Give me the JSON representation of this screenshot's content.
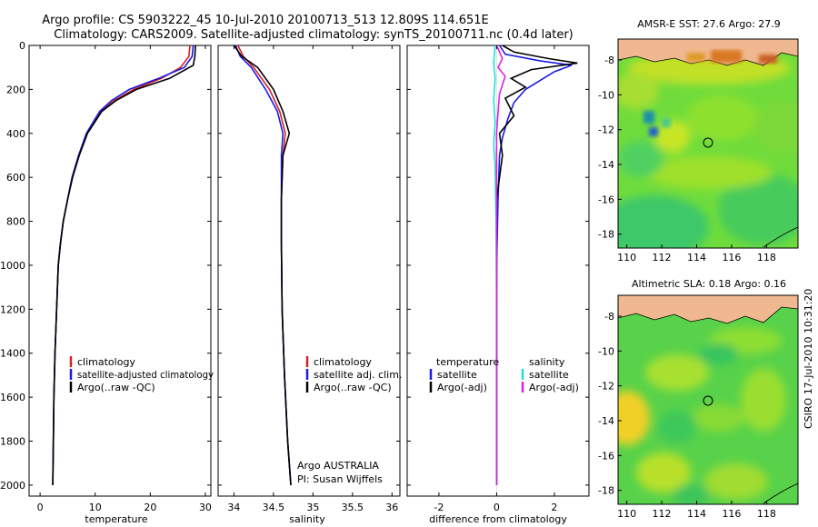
{
  "title_line1": "Argo profile: CS 5903222_45 10-Jul-2010 20100713_513 12.809S 114.651E",
  "title_line2": "Climatology: CARS2009. Satellite-adjusted climatology: synTS_20100711.nc (0.4d later)",
  "depth_ticks": [
    "0",
    "200",
    "400",
    "600",
    "800",
    "1000",
    "1200",
    "1400",
    "1600",
    "1800",
    "2000"
  ],
  "colors": {
    "red": "#d42020",
    "blue": "#1a1ae6",
    "black": "#000000",
    "cyan": "#22dddd",
    "magenta": "#e020e0",
    "sea_green": "#5ad65a",
    "land": "#f0b890"
  },
  "chart_data": [
    {
      "type": "line",
      "name": "temperature",
      "xlabel": "temperature",
      "xlim": [
        -2,
        31
      ],
      "ylim": [
        2050,
        0
      ],
      "xticks": [
        "0",
        "10",
        "20",
        "30"
      ],
      "legend": [
        "climatology",
        "satellite-adjusted climatology",
        "Argo(..raw -QC)"
      ],
      "series": [
        {
          "name": "climatology",
          "color": "red",
          "x": [
            27.2,
            27.0,
            25.5,
            22.0,
            17.0,
            13.5,
            11.0,
            8.5,
            7.0,
            5.8,
            5.0,
            4.2,
            3.7,
            3.3,
            3.0,
            2.7,
            2.5,
            2.4,
            2.3
          ],
          "y": [
            0,
            50,
            100,
            150,
            200,
            250,
            300,
            400,
            500,
            600,
            700,
            800,
            900,
            1000,
            1200,
            1400,
            1600,
            1800,
            2000
          ]
        },
        {
          "name": "satellite-adjusted",
          "color": "blue",
          "x": [
            27.8,
            27.6,
            26.2,
            21.5,
            16.2,
            13.0,
            10.8,
            8.4,
            7.0,
            5.8,
            5.0,
            4.2,
            3.7,
            3.3,
            3.0,
            2.7,
            2.5,
            2.4,
            2.3
          ],
          "y": [
            0,
            50,
            100,
            150,
            200,
            250,
            300,
            400,
            500,
            600,
            700,
            800,
            900,
            1000,
            1200,
            1400,
            1600,
            1800,
            2000
          ]
        },
        {
          "name": "Argo",
          "color": "black",
          "x": [
            28.2,
            28.1,
            27.8,
            23.5,
            17.5,
            13.8,
            11.2,
            8.6,
            7.1,
            5.9,
            5.0,
            4.2,
            3.7,
            3.3,
            3.0,
            2.7,
            2.5,
            2.4,
            2.3
          ],
          "y": [
            0,
            50,
            90,
            150,
            200,
            250,
            300,
            400,
            500,
            600,
            700,
            800,
            900,
            1000,
            1200,
            1400,
            1600,
            1800,
            2000
          ]
        }
      ]
    },
    {
      "type": "line",
      "name": "salinity",
      "xlabel": "salinity",
      "xlim": [
        33.8,
        36.1
      ],
      "ylim": [
        2050,
        0
      ],
      "xticks": [
        "34",
        "34.5",
        "35",
        "35.5",
        "36"
      ],
      "legend": [
        "climatology",
        "satellite adj. clim.",
        "Argo(..raw -QC)"
      ],
      "annotation": [
        "Argo AUSTRALIA",
        "PI: Susan Wijffels"
      ],
      "series": [
        {
          "name": "climatology",
          "color": "red",
          "x": [
            34.05,
            34.12,
            34.25,
            34.45,
            34.58,
            34.65,
            34.62,
            34.6,
            34.6,
            34.61,
            34.64,
            34.68,
            34.72
          ],
          "y": [
            0,
            50,
            100,
            200,
            300,
            400,
            500,
            700,
            900,
            1200,
            1500,
            1800,
            2000
          ]
        },
        {
          "name": "satellite adjusted",
          "color": "blue",
          "x": [
            34.02,
            34.08,
            34.22,
            34.4,
            34.55,
            34.62,
            34.6,
            34.6,
            34.6,
            34.61,
            34.64,
            34.68,
            34.72
          ],
          "y": [
            0,
            50,
            100,
            200,
            300,
            400,
            500,
            700,
            900,
            1200,
            1500,
            1800,
            2000
          ]
        },
        {
          "name": "Argo",
          "color": "black",
          "x": [
            34.0,
            34.1,
            34.3,
            34.5,
            34.62,
            34.7,
            34.62,
            34.6,
            34.6,
            34.61,
            34.64,
            34.68,
            34.72
          ],
          "y": [
            0,
            50,
            100,
            200,
            300,
            400,
            500,
            700,
            900,
            1200,
            1500,
            1800,
            2000
          ]
        }
      ]
    },
    {
      "type": "line",
      "name": "difference",
      "xlabel": "difference from climatology",
      "xlim": [
        -3.1,
        3.2
      ],
      "ylim": [
        2050,
        0
      ],
      "xticks": [
        "-2",
        "0",
        "2"
      ],
      "legend_left_title": "temperature",
      "legend_right_title": "salinity",
      "legend_left": [
        "satellite",
        "Argo(-adj)"
      ],
      "legend_right": [
        "satellite",
        "Argo(-adj)"
      ],
      "series": [
        {
          "name": "temperature satellite",
          "color": "blue",
          "x": [
            0.1,
            0.3,
            1.5,
            2.6,
            2.0,
            1.5,
            1.0,
            0.6,
            0.4,
            0.2,
            0.1,
            0.05,
            0.0,
            0.0,
            0.0
          ],
          "y": [
            0,
            40,
            70,
            90,
            120,
            160,
            200,
            260,
            330,
            420,
            500,
            700,
            1000,
            1500,
            2000
          ]
        },
        {
          "name": "temperature Argo",
          "color": "black",
          "x": [
            0.2,
            0.6,
            1.8,
            2.8,
            1.2,
            0.5,
            1.0,
            0.3,
            0.6,
            0.1,
            0.2,
            0.0,
            0.0,
            0.0,
            0.0
          ],
          "y": [
            0,
            30,
            60,
            80,
            110,
            150,
            190,
            240,
            320,
            400,
            500,
            700,
            1000,
            1500,
            2000
          ]
        },
        {
          "name": "salinity satellite",
          "color": "cyan",
          "x": [
            -0.05,
            -0.1,
            -0.05,
            -0.1,
            -0.05,
            -0.1,
            -0.05,
            -0.02,
            0.0,
            0.0
          ],
          "y": [
            0,
            80,
            150,
            250,
            350,
            450,
            550,
            800,
            1200,
            2000
          ]
        },
        {
          "name": "salinity Argo",
          "color": "magenta",
          "x": [
            0.0,
            0.2,
            0.05,
            0.3,
            0.1,
            0.05,
            0.0,
            0.0,
            0.0,
            0.0
          ],
          "y": [
            0,
            60,
            100,
            140,
            220,
            300,
            400,
            700,
            1200,
            2000
          ]
        }
      ]
    },
    {
      "type": "heatmap",
      "name": "sst_map",
      "title": "AMSR-E SST: 27.6 Argo: 27.9",
      "xlim": [
        109.5,
        119.8
      ],
      "ylim": [
        -18.8,
        -6.8
      ],
      "xticks": [
        "110",
        "112",
        "114",
        "116",
        "118"
      ],
      "yticks": [
        "-8",
        "-10",
        "-12",
        "-14",
        "-16",
        "-18"
      ],
      "marker": {
        "lon": 114.651,
        "lat": -12.809
      }
    },
    {
      "type": "heatmap",
      "name": "sla_map",
      "title": "Altimetric SLA: 0.18 Argo: 0.16",
      "xlim": [
        109.5,
        119.8
      ],
      "ylim": [
        -18.8,
        -6.8
      ],
      "xticks": [
        "110",
        "112",
        "114",
        "116",
        "118"
      ],
      "yticks": [
        "-8",
        "-10",
        "-12",
        "-14",
        "-16",
        "-18"
      ],
      "marker": {
        "lon": 114.651,
        "lat": -12.809
      }
    }
  ],
  "side_text": "CSIRO 17-Jul-2010 10:31:20"
}
